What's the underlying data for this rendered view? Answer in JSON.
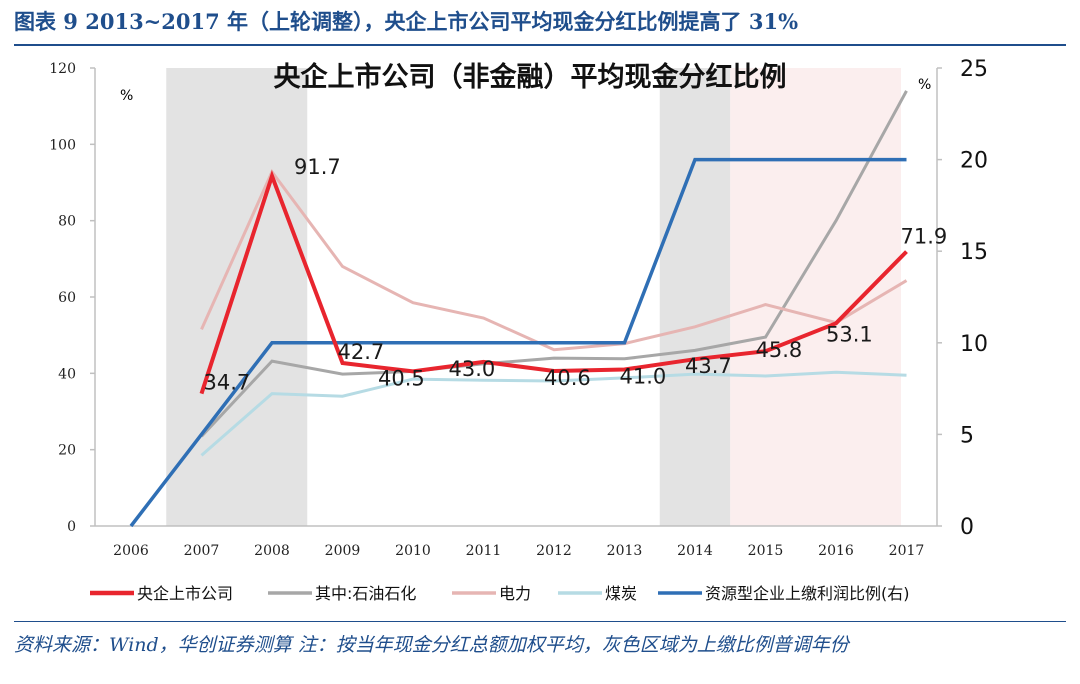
{
  "figure_title": "图表 9   2013~2017 年（上轮调整），央企上市公司平均现金分红比例提高了 31%",
  "source_note": "资料来源：Wind，华创证券测算  注：按当年现金分红总额加权平均，灰色区域为上缴比例普调年份",
  "colors": {
    "title_blue": "#1f4e8c",
    "central_soe": "#e8252e",
    "petrochemical": "#a7a7a7",
    "power": "#e6b5b3",
    "coal": "#b6dbe4",
    "resource_ratio": "#2f6fb5",
    "gray_band": "#e3e3e3",
    "pink_band": "#fbeeee"
  },
  "chart_data": {
    "type": "line",
    "title": "央企上市公司（非金融）平均现金分红比例",
    "left_axis": {
      "unit": "%",
      "ylim": [
        0,
        120
      ],
      "ticks": [
        "0",
        "20",
        "40",
        "60",
        "80",
        "100",
        "120"
      ]
    },
    "right_axis": {
      "unit": "%",
      "ylim": [
        0,
        25
      ],
      "ticks": [
        "0",
        "5",
        "10",
        "15",
        "20",
        "25"
      ]
    },
    "categories": [
      "2006",
      "2007",
      "2008",
      "2009",
      "2010",
      "2011",
      "2012",
      "2013",
      "2014",
      "2015",
      "2016",
      "2017"
    ],
    "shaded_regions": [
      {
        "from": 2006.5,
        "to": 2008.5,
        "style": "gray"
      },
      {
        "from": 2013.5,
        "to": 2014.5,
        "style": "gray"
      },
      {
        "from": 2014.5,
        "to": 2017,
        "style": "pink"
      }
    ],
    "grid": false,
    "legend_position": "bottom",
    "series": [
      {
        "name": "央企上市公司",
        "axis": "left",
        "color_key": "central_soe",
        "width": 4,
        "points": [
          [
            2007,
            34.7
          ],
          [
            2008,
            91.7
          ],
          [
            2009,
            42.7
          ],
          [
            2010,
            40.5
          ],
          [
            2011,
            43.0
          ],
          [
            2012,
            40.6
          ],
          [
            2013,
            41.0
          ],
          [
            2014,
            43.7
          ],
          [
            2015,
            45.8
          ],
          [
            2016,
            53.1
          ],
          [
            2017,
            71.9
          ]
        ],
        "labels": [
          "34.7",
          "91.7",
          "42.7",
          "40.5",
          "43.0",
          "40.6",
          "41.0",
          "43.7",
          "45.8",
          "53.1",
          "71.9"
        ]
      },
      {
        "name": "其中:石油石化",
        "axis": "left",
        "color_key": "petrochemical",
        "width": 3,
        "points": [
          [
            2007,
            23.5
          ],
          [
            2008,
            43.2
          ],
          [
            2009,
            39.8
          ],
          [
            2010,
            40.5
          ],
          [
            2011,
            42.5
          ],
          [
            2012,
            44.0
          ],
          [
            2013,
            43.8
          ],
          [
            2014,
            46.0
          ],
          [
            2015,
            49.5
          ],
          [
            2016,
            80.0
          ],
          [
            2017,
            114.0
          ]
        ]
      },
      {
        "name": "电力",
        "axis": "left",
        "color_key": "power",
        "width": 3,
        "points": [
          [
            2007,
            51.5
          ],
          [
            2008,
            92.8
          ],
          [
            2009,
            68.0
          ],
          [
            2010,
            58.5
          ],
          [
            2011,
            54.5
          ],
          [
            2012,
            46.2
          ],
          [
            2013,
            47.8
          ],
          [
            2014,
            52.2
          ],
          [
            2015,
            58.0
          ],
          [
            2016,
            53.3
          ],
          [
            2017,
            64.3
          ]
        ]
      },
      {
        "name": "煤炭",
        "axis": "left",
        "color_key": "coal",
        "width": 3,
        "points": [
          [
            2007,
            18.5
          ],
          [
            2008,
            34.7
          ],
          [
            2009,
            34.0
          ],
          [
            2010,
            38.5
          ],
          [
            2011,
            38.2
          ],
          [
            2012,
            38.0
          ],
          [
            2013,
            38.8
          ],
          [
            2014,
            39.8
          ],
          [
            2015,
            39.3
          ],
          [
            2016,
            40.3
          ],
          [
            2017,
            39.5
          ]
        ]
      },
      {
        "name": "资源型企业上缴利润比例(右)",
        "axis": "right",
        "color_key": "resource_ratio",
        "width": 3.5,
        "points": [
          [
            2006,
            0
          ],
          [
            2008,
            10
          ],
          [
            2013,
            10
          ],
          [
            2014,
            20
          ],
          [
            2017,
            20
          ]
        ]
      }
    ]
  }
}
